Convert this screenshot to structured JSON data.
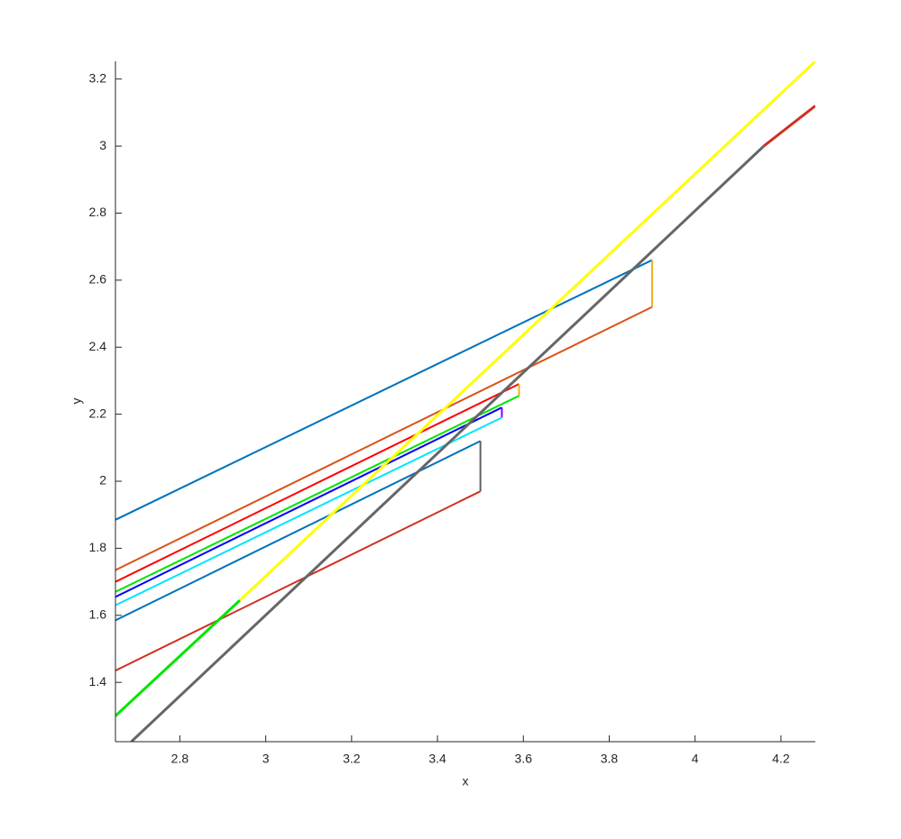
{
  "chart_data": {
    "type": "line",
    "x_label": "x",
    "y_label": "y",
    "xlim": [
      2.65,
      4.28
    ],
    "ylim": [
      1.223,
      3.253
    ],
    "xticks": [
      2.8,
      3,
      3.2,
      3.4,
      3.6,
      3.8,
      4,
      4.2
    ],
    "yticks": [
      1.4,
      1.6,
      1.8,
      2,
      2.2,
      2.4,
      2.6,
      2.8,
      3,
      3.2
    ],
    "grid": false,
    "series": [
      {
        "color": "#0072bd",
        "width": 2,
        "x": [
          2.65,
          3.9
        ],
        "values": [
          1.885,
          2.66
        ]
      },
      {
        "color": "#d95319",
        "width": 2,
        "x": [
          2.65,
          3.9
        ],
        "values": [
          1.735,
          2.52
        ]
      },
      {
        "color": "#edb120",
        "width": 2,
        "x": [
          3.9,
          3.9
        ],
        "values": [
          2.52,
          2.66
        ]
      },
      {
        "color": "#ff0000",
        "width": 2,
        "x": [
          2.65,
          3.59
        ],
        "values": [
          1.7,
          2.29
        ]
      },
      {
        "color": "#00e600",
        "width": 2,
        "x": [
          2.65,
          3.59
        ],
        "values": [
          1.67,
          2.255
        ]
      },
      {
        "color": "#edb120",
        "width": 2,
        "x": [
          3.59,
          3.59
        ],
        "values": [
          2.255,
          2.29
        ]
      },
      {
        "color": "#0000ff",
        "width": 2,
        "x": [
          2.65,
          3.55
        ],
        "values": [
          1.655,
          2.22
        ]
      },
      {
        "color": "#8000ff",
        "width": 2,
        "x": [
          3.55,
          3.55
        ],
        "values": [
          2.19,
          2.22
        ]
      },
      {
        "color": "#00e5ff",
        "width": 2,
        "x": [
          2.65,
          3.55
        ],
        "values": [
          1.63,
          2.19
        ]
      },
      {
        "color": "#0072bd",
        "width": 2,
        "x": [
          2.65,
          3.5
        ],
        "values": [
          1.585,
          2.12
        ]
      },
      {
        "color": "#606060",
        "width": 2,
        "x": [
          3.5,
          3.5
        ],
        "values": [
          1.97,
          2.12
        ]
      },
      {
        "color": "#d03020",
        "width": 2,
        "x": [
          2.65,
          3.5
        ],
        "values": [
          1.435,
          1.97
        ]
      },
      {
        "color": "#00e600",
        "width": 3,
        "x": [
          2.65,
          2.94
        ],
        "values": [
          1.3,
          1.645
        ]
      },
      {
        "color": "#ffff00",
        "width": 3,
        "x": [
          2.94,
          4.28
        ],
        "values": [
          1.645,
          3.253
        ]
      },
      {
        "color": "#d03020",
        "width": 3,
        "x": [
          4.16,
          4.28
        ],
        "values": [
          3.0,
          3.12
        ]
      },
      {
        "color": "#666666",
        "width": 3,
        "x": [
          2.687,
          4.16
        ],
        "values": [
          1.223,
          3.0
        ]
      }
    ]
  }
}
